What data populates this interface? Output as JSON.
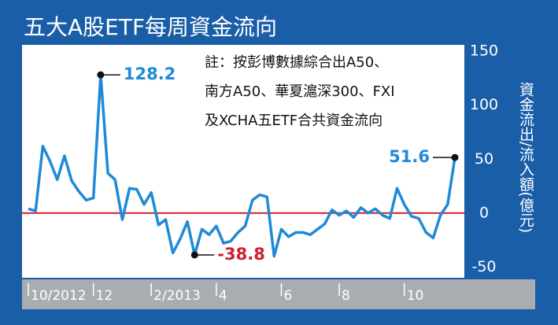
{
  "chart_data": {
    "type": "line",
    "title": "五大A股ETF每周資金流向",
    "y_axis_label": "資金流出/流入額(億元)",
    "annotation": [
      "註：按彭博數據綜合出A50、",
      "南方A50、華夏滬深300、FXI",
      "及XCHA五ETF合共資金流向"
    ],
    "categories": [
      "10/2012",
      null,
      null,
      null,
      null,
      null,
      null,
      null,
      null,
      "12",
      null,
      null,
      null,
      null,
      null,
      null,
      null,
      "2/2013",
      null,
      null,
      null,
      null,
      null,
      null,
      null,
      null,
      "4",
      null,
      null,
      null,
      null,
      null,
      null,
      null,
      null,
      "6",
      null,
      null,
      null,
      null,
      null,
      null,
      null,
      "8",
      null,
      null,
      null,
      null,
      null,
      null,
      null,
      null,
      "10",
      null,
      null,
      null,
      null,
      null,
      null,
      null
    ],
    "values": [
      4,
      2,
      62,
      48,
      31,
      53,
      30,
      20,
      12,
      14,
      128.2,
      37,
      31,
      -6,
      23,
      22,
      8,
      19,
      -11,
      -6,
      -37,
      -24,
      -8,
      -38.8,
      -15,
      -20,
      -12,
      -28,
      -26,
      -18,
      -12,
      12,
      17,
      15,
      -40,
      -15,
      -22,
      -18,
      -18,
      -20,
      -15,
      -10,
      3,
      -2,
      2,
      -4,
      5,
      0,
      4,
      -2,
      -5,
      23,
      8,
      -3,
      -5,
      -18,
      -23,
      -2,
      8,
      51.6
    ],
    "color": "#1f8ad6",
    "zero_line_color": "#d0202e",
    "ylim": [
      -60,
      156
    ],
    "yticks": [
      150,
      100,
      50,
      0,
      -50
    ],
    "labeled_points": [
      {
        "index": 10,
        "color": "#1f8ad6"
      },
      {
        "index": 23,
        "color": "#d0202e"
      },
      {
        "index": 59,
        "color": "#1f8ad6"
      }
    ]
  }
}
